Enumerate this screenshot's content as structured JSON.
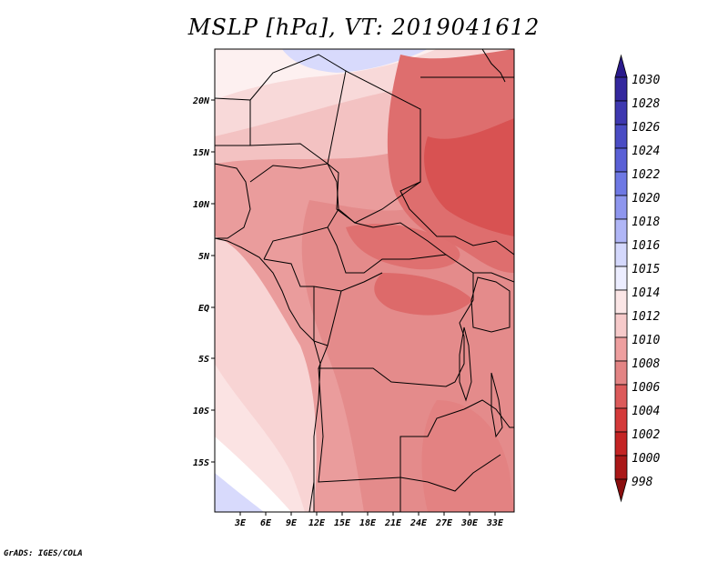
{
  "title": "MSLP [hPa], VT: 2019041612",
  "credit": "GrADS: IGES/COLA",
  "map": {
    "lat_labels": [
      "20N",
      "15N",
      "10N",
      "5N",
      "EQ",
      "5S",
      "10S",
      "15S"
    ],
    "lon_labels": [
      "3E",
      "6E",
      "9E",
      "12E",
      "15E",
      "18E",
      "21E",
      "24E",
      "27E",
      "30E",
      "33E"
    ],
    "region": "Central Africa",
    "field": "mean sea level pressure"
  },
  "colorbar": {
    "labels": [
      "1030",
      "1028",
      "1026",
      "1024",
      "1022",
      "1020",
      "1018",
      "1016",
      "1015",
      "1014",
      "1012",
      "1010",
      "1008",
      "1006",
      "1004",
      "1002",
      "1000",
      "998"
    ],
    "colors": [
      "#2a1a8c",
      "#34289e",
      "#3e38b0",
      "#4a4cc4",
      "#5a60d6",
      "#6e78e4",
      "#8e96ee",
      "#b0b6f6",
      "#d4d8fc",
      "#ecedff",
      "#fbe6e6",
      "#f6caca",
      "#ee9f9f",
      "#e38484",
      "#dc5a5a",
      "#d43a3a",
      "#c42424",
      "#aa1818",
      "#8a0e0e"
    ]
  },
  "chart_data": {
    "type": "heatmap",
    "title": "MSLP [hPa], VT: 2019041612",
    "xlabel": "",
    "ylabel": "",
    "x_ticks": [
      "3E",
      "6E",
      "9E",
      "12E",
      "15E",
      "18E",
      "21E",
      "24E",
      "27E",
      "30E",
      "33E"
    ],
    "y_ticks": [
      "20N",
      "15N",
      "10N",
      "5N",
      "EQ",
      "5S",
      "10S",
      "15S"
    ],
    "color_levels": [
      1030,
      1028,
      1026,
      1024,
      1022,
      1020,
      1018,
      1016,
      1015,
      1014,
      1012,
      1010,
      1008,
      1006,
      1004,
      1002,
      1000,
      998
    ]
  }
}
